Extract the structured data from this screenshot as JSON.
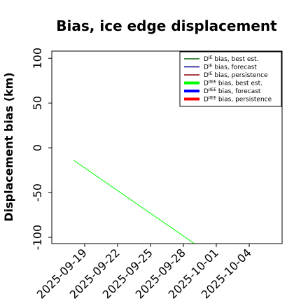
{
  "chart_data": {
    "type": "line",
    "title": "Bias, ice edge displacement",
    "ylabel": "Displacement bias (km)",
    "xlabel": "",
    "xlim": [
      "2025-09-16",
      "2025-10-07"
    ],
    "ylim": [
      -107,
      108
    ],
    "x_ticks": [
      {
        "label": "2025-09-19",
        "date": "2025-09-19",
        "color": "#000000"
      },
      {
        "label": "2025-09-22",
        "date": "2025-09-22",
        "color": "#000000"
      },
      {
        "label": "2025-09-25",
        "date": "2025-09-25",
        "color": "#228B22"
      },
      {
        "label": "2025-09-28",
        "date": "2025-09-28",
        "color": "#000000"
      },
      {
        "label": "2025-10-01",
        "date": "2025-10-01",
        "color": "#000000"
      },
      {
        "label": "2025-10-04",
        "date": "2025-10-04",
        "color": "#000000"
      }
    ],
    "y_ticks": [
      "-100",
      "-50",
      "0",
      "50",
      "100"
    ],
    "grid": false,
    "legend_position": "top-right",
    "legend": [
      {
        "pre": "D",
        "sup": "IE",
        "post": " bias, best est.",
        "color": "#006400",
        "width": "thin"
      },
      {
        "pre": "D",
        "sup": "IE",
        "post": " bias, forecast",
        "color": "#00008B",
        "width": "thin"
      },
      {
        "pre": "D",
        "sup": "IE",
        "post": " bias, persistence",
        "color": "#8B0000",
        "width": "thin"
      },
      {
        "pre": "D",
        "sup": "IIEE",
        "post": " bias, best est.",
        "color": "#00FF00",
        "width": "thick"
      },
      {
        "pre": "D",
        "sup": "IIEE",
        "post": " bias, forecast",
        "color": "#0000FF",
        "width": "thick"
      },
      {
        "pre": "D",
        "sup": "IIEE",
        "post": " bias, persistence",
        "color": "#FF0000",
        "width": "thick"
      }
    ],
    "series": [
      {
        "color": "#00FF00",
        "points": [
          {
            "x": "2025-09-18",
            "y": -14
          },
          {
            "x": "2025-09-29",
            "y": -107
          }
        ]
      }
    ]
  }
}
